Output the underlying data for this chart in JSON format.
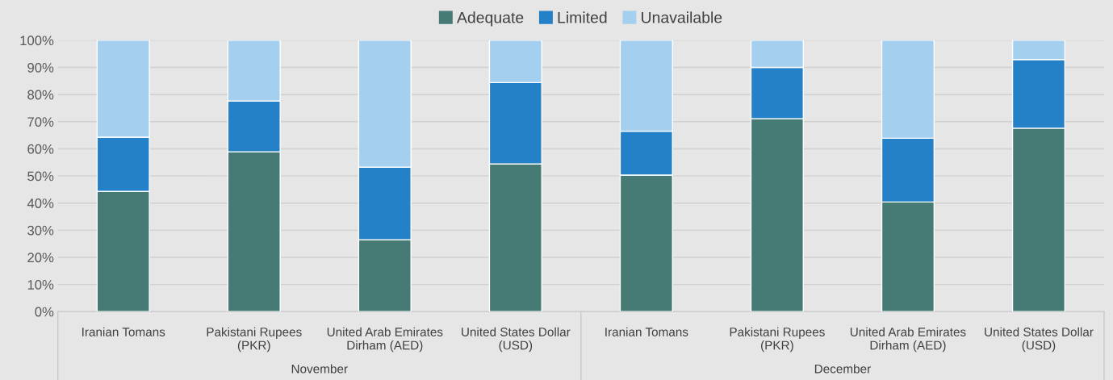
{
  "chart_data": {
    "type": "bar",
    "stacked": true,
    "categories": [
      "Iranian Tomans",
      "Pakistani Rupees\n(PKR)",
      "United Arab Emirates\nDirham (AED)",
      "United States Dollar\n(USD)",
      "Iranian Tomans",
      "Pakistani Rupees\n(PKR)",
      "United Arab Emirates\nDirham (AED)",
      "United States Dollar\n(USD)"
    ],
    "series": [
      {
        "name": "Adequate",
        "color": "#467a74",
        "values": [
          44.3,
          58.9,
          26.5,
          54.4,
          50.3,
          71.1,
          40.4,
          67.6
        ]
      },
      {
        "name": "Limited",
        "color": "#2581c7",
        "values": [
          20.0,
          18.7,
          26.7,
          30.0,
          16.2,
          18.9,
          23.5,
          25.3
        ]
      },
      {
        "name": "Unavailable",
        "color": "#a4cfee",
        "values": [
          35.7,
          22.4,
          46.8,
          15.6,
          33.5,
          10.0,
          36.1,
          7.1
        ]
      }
    ],
    "annotations": [
      "November",
      "December"
    ],
    "ylim": [
      0,
      100
    ],
    "yticks": [
      {
        "value": 0,
        "label": "0%"
      },
      {
        "value": 10,
        "label": "10%"
      },
      {
        "value": 20,
        "label": "20%"
      },
      {
        "value": 30,
        "label": "30%"
      },
      {
        "value": 40,
        "label": "40%"
      },
      {
        "value": 50,
        "label": "50%"
      },
      {
        "value": 60,
        "label": "60%"
      },
      {
        "value": 70,
        "label": "70%"
      },
      {
        "value": 80,
        "label": "80%"
      },
      {
        "value": 90,
        "label": "90%"
      },
      {
        "value": 100,
        "label": "100%"
      }
    ],
    "grid": "y",
    "legend": "top"
  }
}
